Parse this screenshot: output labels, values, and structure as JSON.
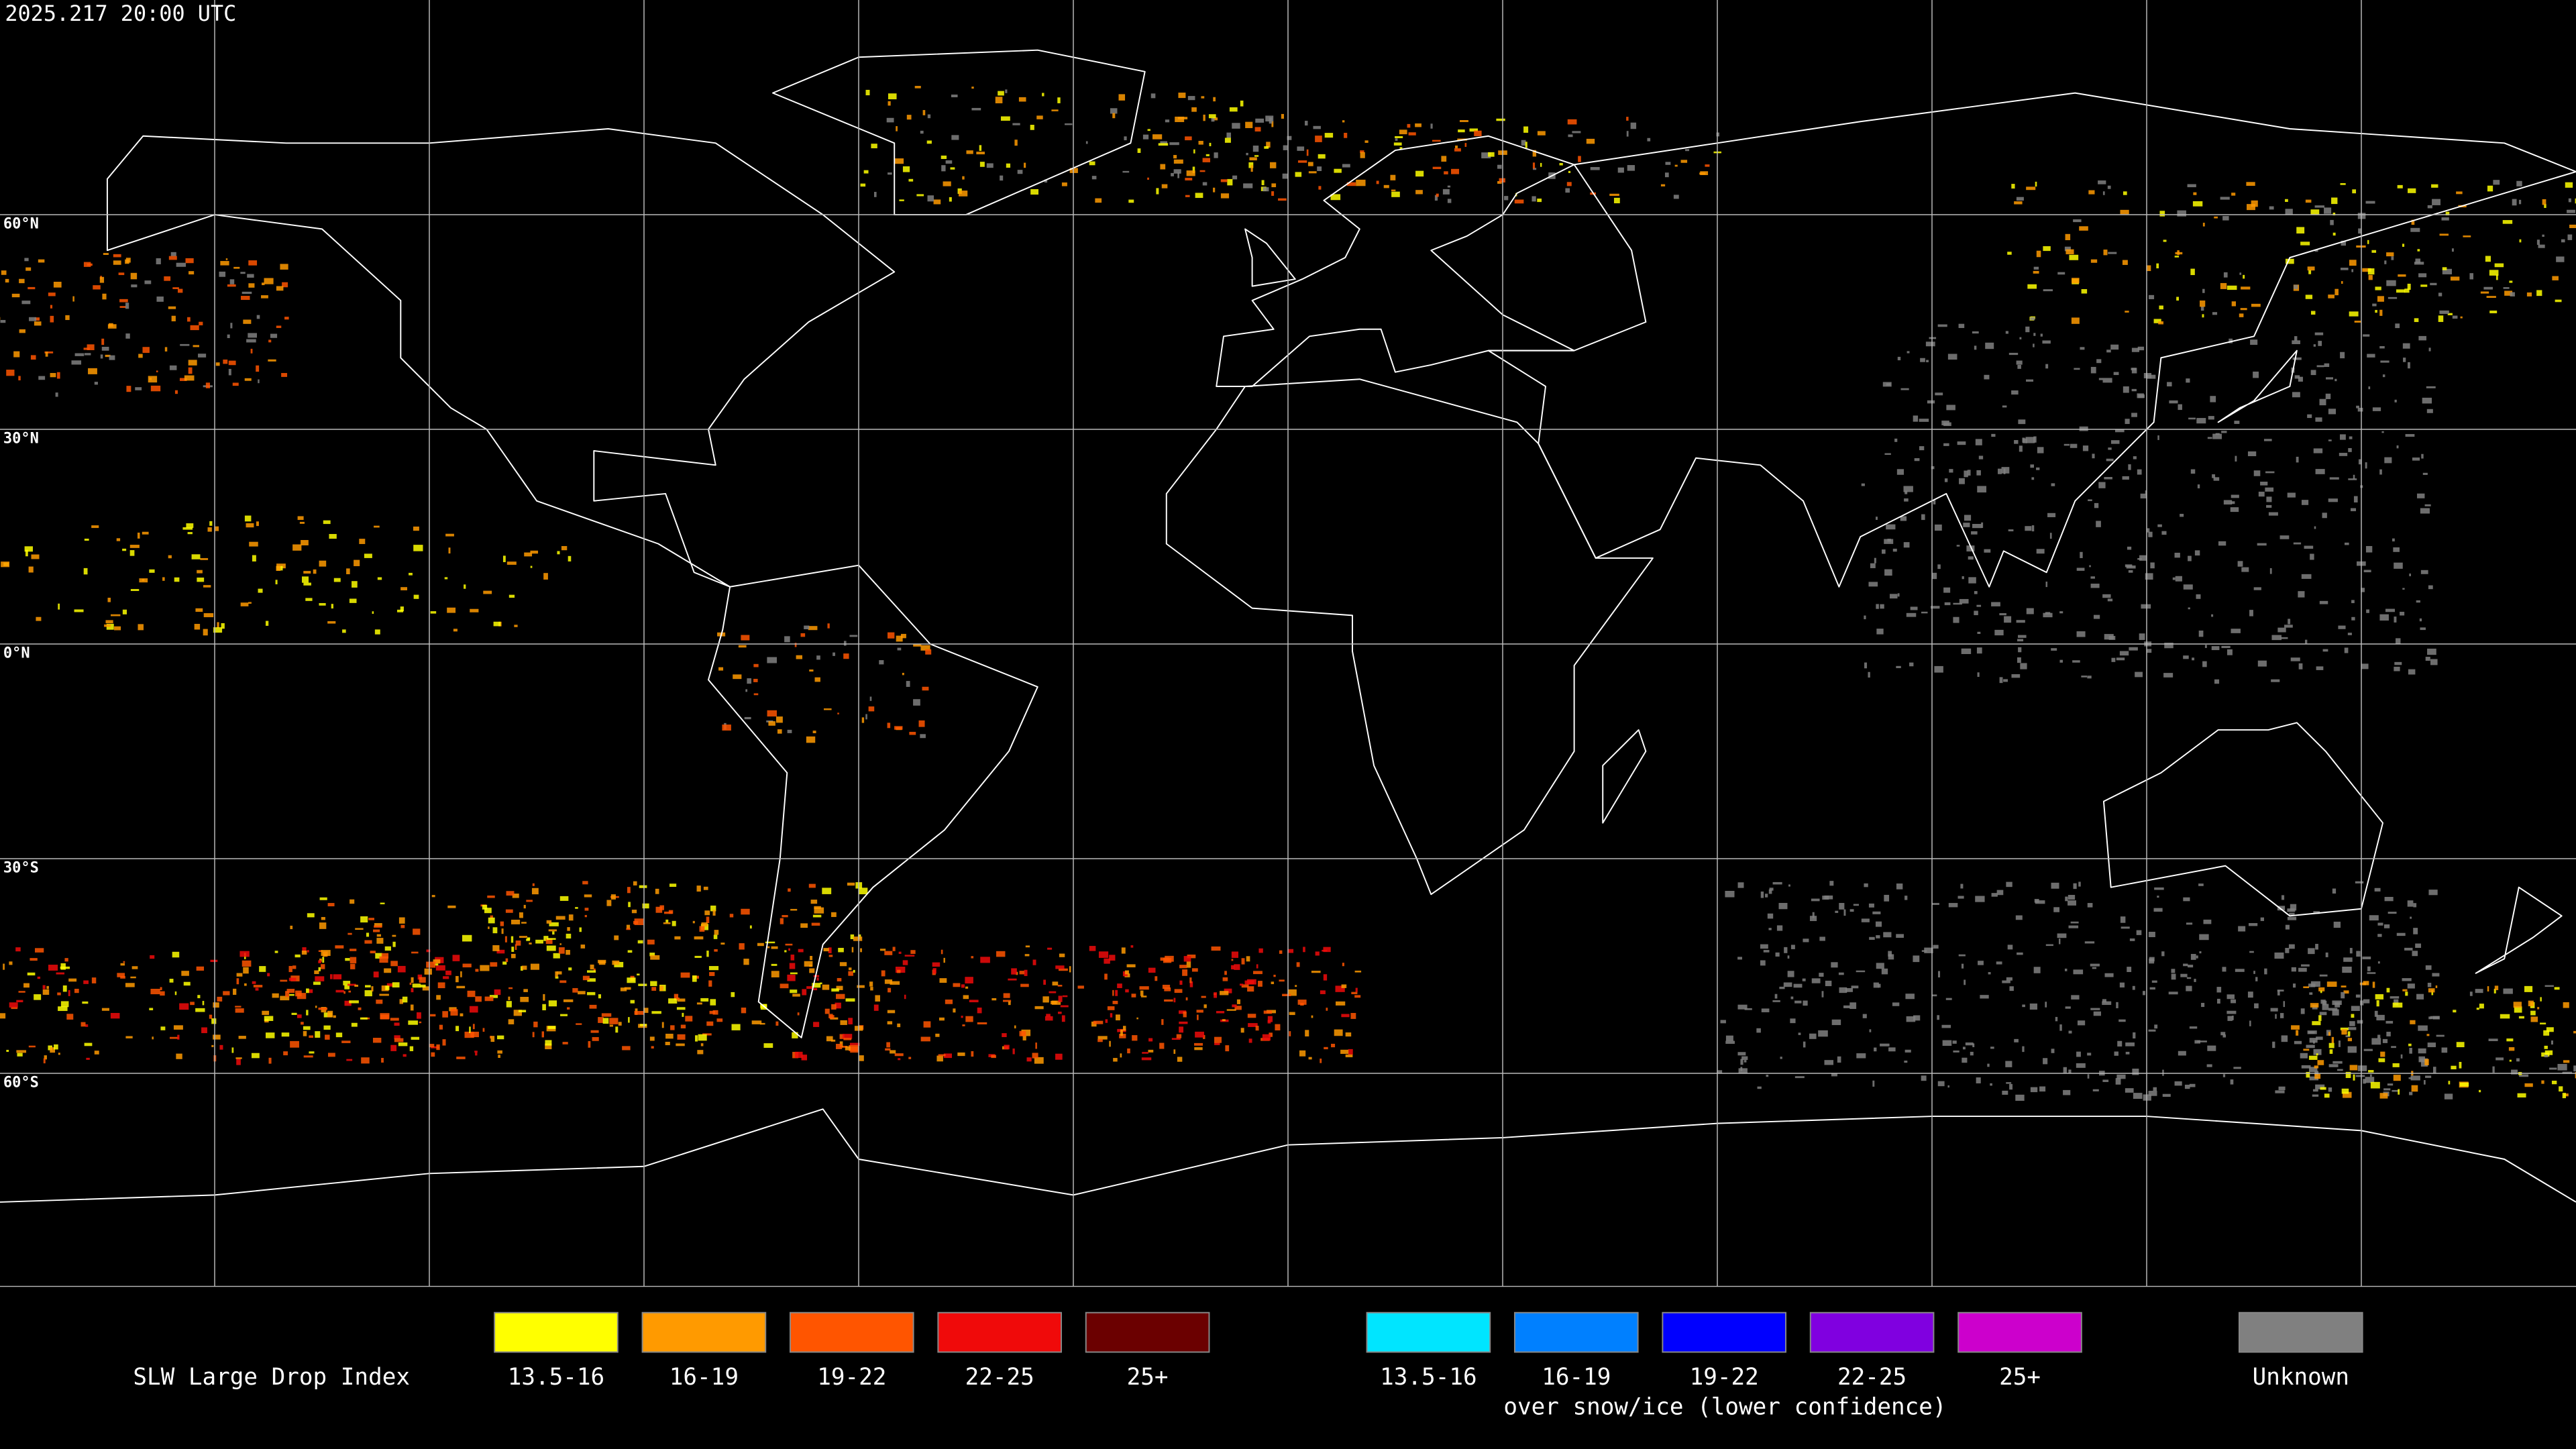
{
  "header": {
    "timestamp": "2025.217 20:00 UTC"
  },
  "map": {
    "lat_labels": [
      "60°N",
      "30°N",
      "0°N",
      "30°S",
      "60°S"
    ]
  },
  "legend": {
    "title": "SLW Large Drop Index",
    "items": [
      {
        "label": "13.5-16",
        "color": "#ffff00"
      },
      {
        "label": "16-19",
        "color": "#ff9a00"
      },
      {
        "label": "19-22",
        "color": "#ff5500"
      },
      {
        "label": "22-25",
        "color": "#f00a0a"
      },
      {
        "label": "25+",
        "color": "#6b0000"
      }
    ],
    "snow_items": [
      {
        "label": "13.5-16",
        "color": "#00e5ff"
      },
      {
        "label": "16-19",
        "color": "#0080ff"
      },
      {
        "label": "19-22",
        "color": "#0000ff"
      },
      {
        "label": "22-25",
        "color": "#8000e0"
      },
      {
        "label": "25+",
        "color": "#cc00cc"
      }
    ],
    "snow_caption": "over snow/ice (lower confidence)",
    "unknown": {
      "label": "Unknown",
      "color": "#808080"
    }
  }
}
